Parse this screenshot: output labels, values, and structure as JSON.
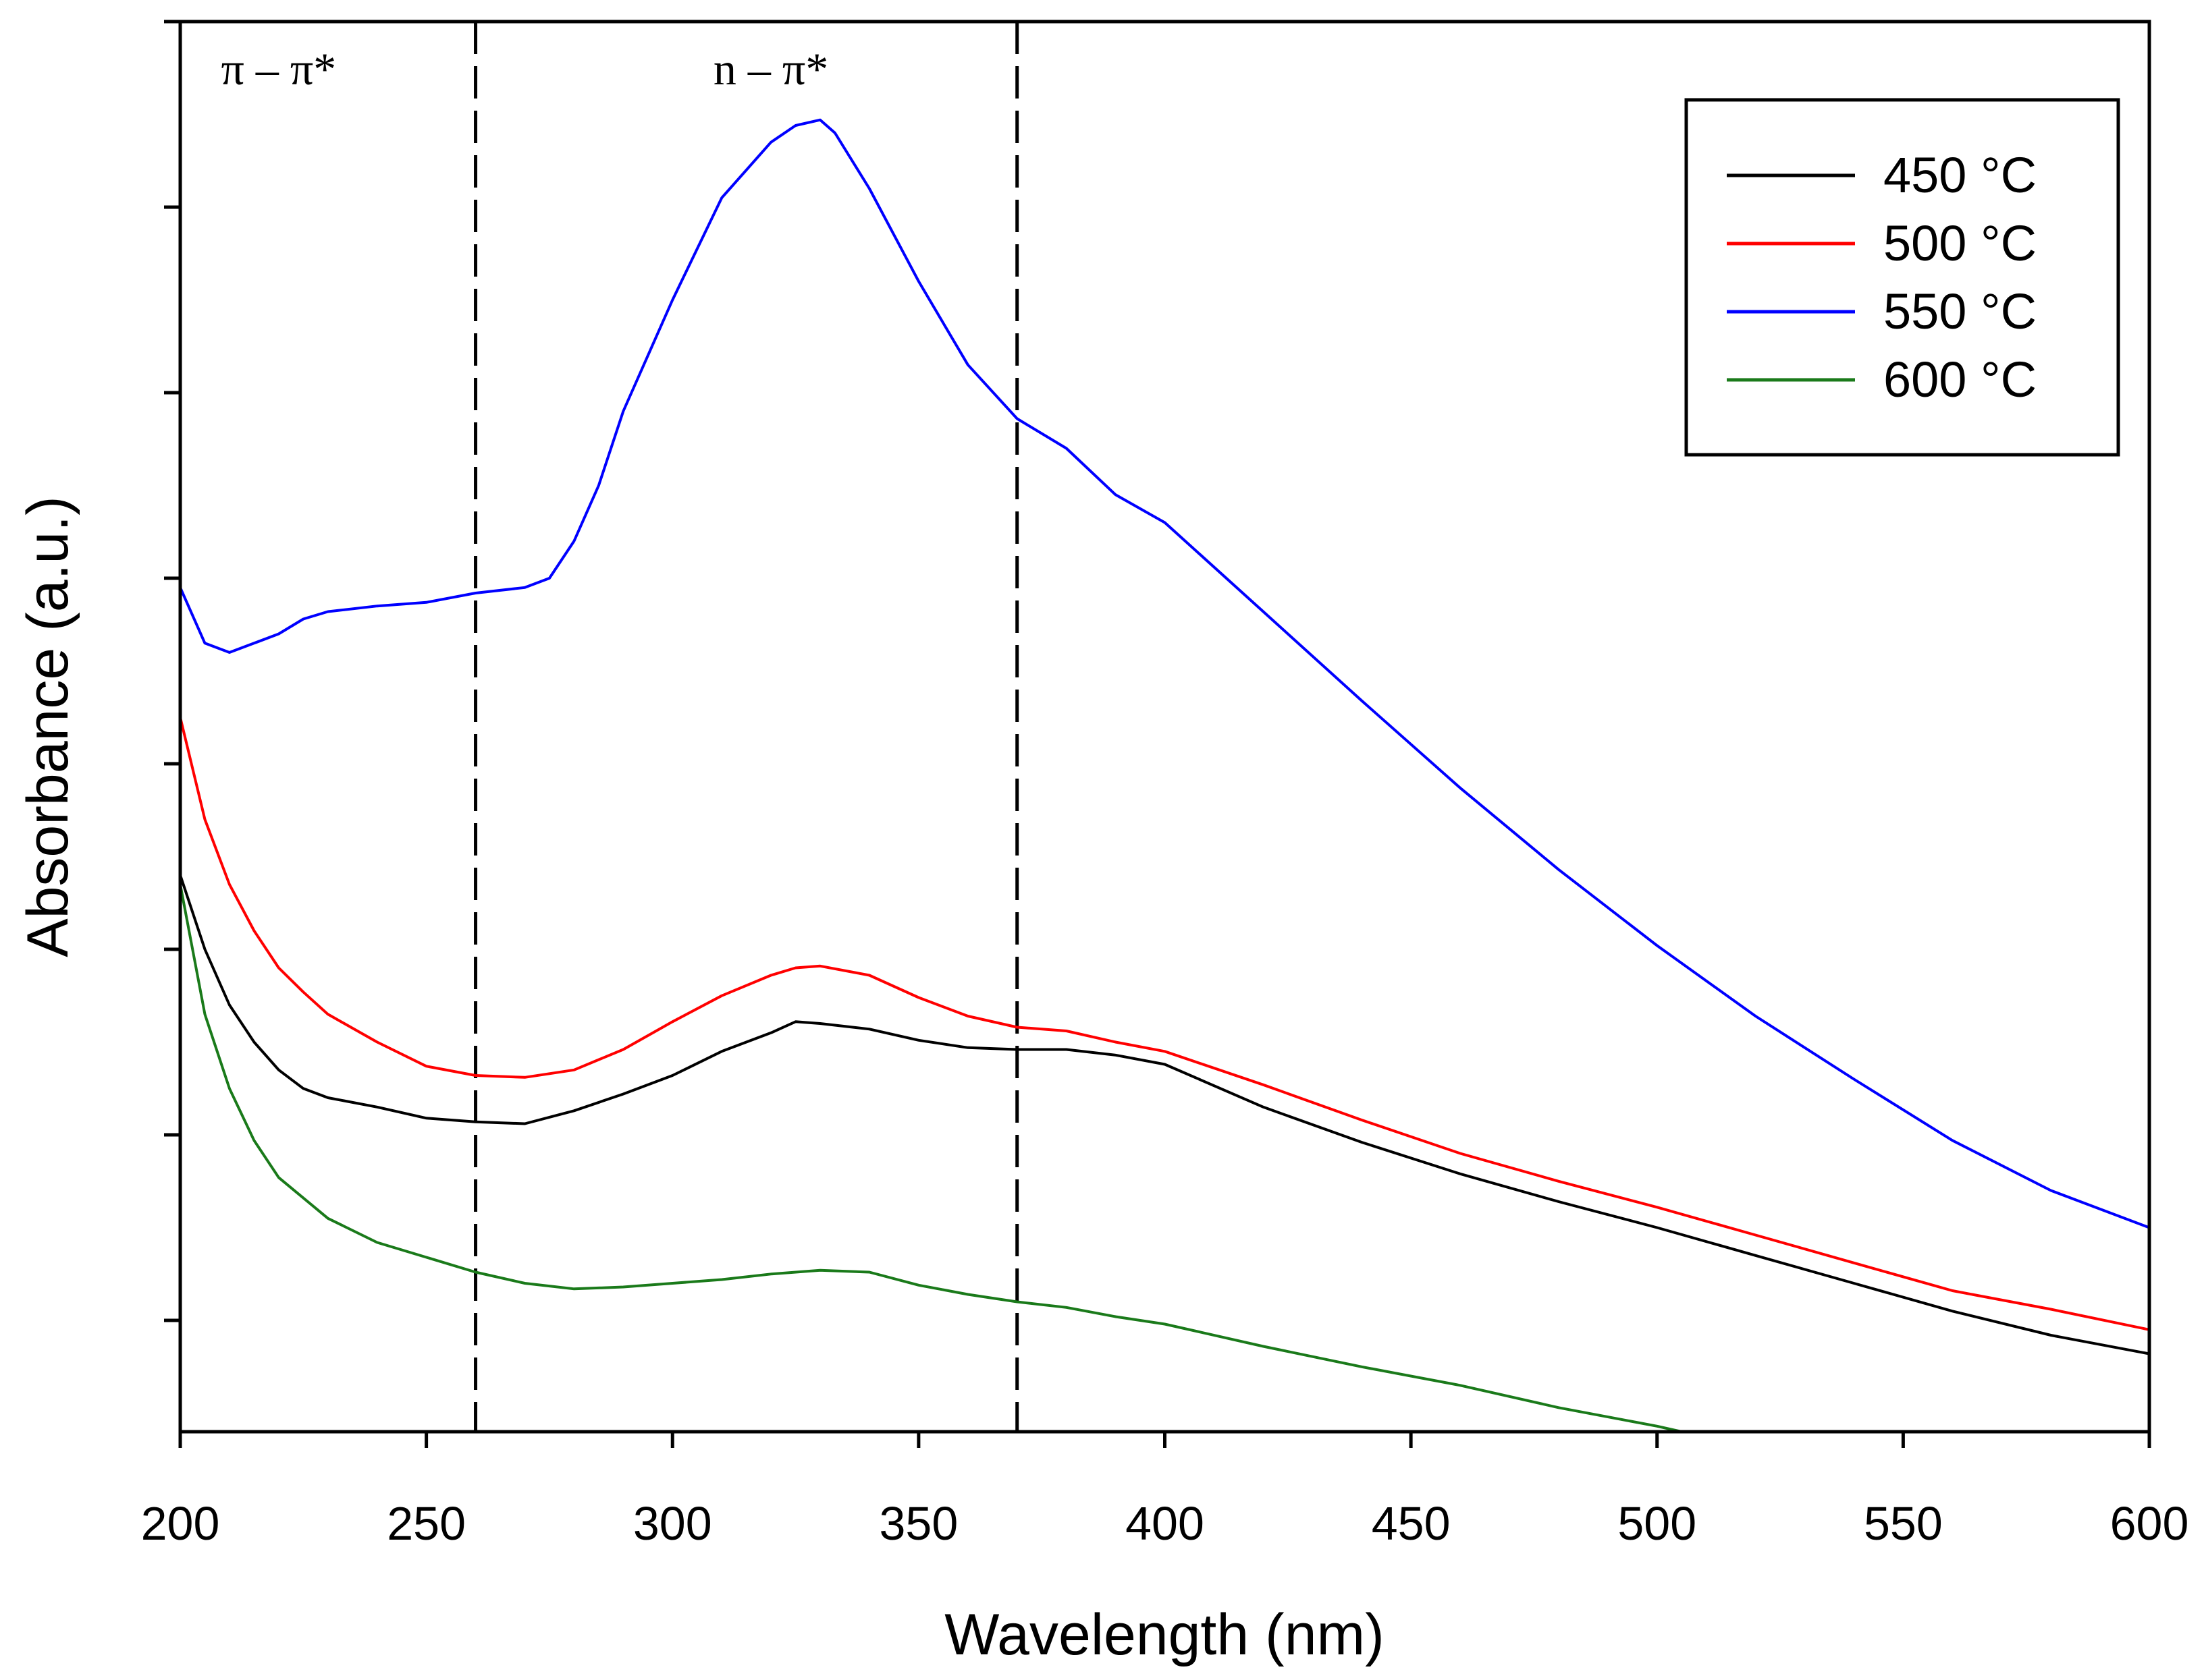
{
  "chart_data": {
    "type": "line",
    "title": "",
    "xlabel": "Wavelength (nm)",
    "ylabel": "Absorbance (a.u.)",
    "xlim": [
      200,
      600
    ],
    "ylim": [
      0,
      7.6
    ],
    "x_ticks": [
      200,
      250,
      300,
      350,
      400,
      450,
      500,
      550,
      600
    ],
    "y_ticks": [
      0.6,
      1.6,
      2.6,
      3.6,
      4.6,
      5.6,
      6.6,
      7.6
    ],
    "y_tick_labels_shown": false,
    "grid": false,
    "legend_position": "top-right",
    "annotations": [
      {
        "text": "π – π*",
        "x": 220
      },
      {
        "text": "n – π*",
        "x": 320
      }
    ],
    "vlines": [
      260,
      370
    ],
    "series": [
      {
        "name": "450 °C",
        "color": "#000000",
        "x": [
          200,
          205,
          210,
          215,
          220,
          225,
          230,
          240,
          250,
          260,
          270,
          280,
          290,
          300,
          310,
          320,
          325,
          330,
          340,
          350,
          360,
          370,
          380,
          390,
          400,
          420,
          440,
          460,
          480,
          500,
          520,
          540,
          560,
          580,
          600
        ],
        "y": [
          3.0,
          2.6,
          2.3,
          2.1,
          1.95,
          1.85,
          1.8,
          1.75,
          1.69,
          1.67,
          1.66,
          1.73,
          1.82,
          1.92,
          2.05,
          2.15,
          2.21,
          2.2,
          2.17,
          2.11,
          2.07,
          2.06,
          2.06,
          2.03,
          1.98,
          1.75,
          1.56,
          1.39,
          1.24,
          1.1,
          0.95,
          0.8,
          0.65,
          0.52,
          0.42
        ]
      },
      {
        "name": "500 °C",
        "color": "#ff0000",
        "x": [
          200,
          205,
          210,
          215,
          220,
          225,
          230,
          240,
          250,
          260,
          270,
          280,
          290,
          300,
          310,
          320,
          325,
          330,
          340,
          350,
          360,
          370,
          380,
          390,
          400,
          420,
          440,
          460,
          480,
          500,
          520,
          540,
          560,
          580,
          600
        ],
        "y": [
          3.85,
          3.3,
          2.95,
          2.7,
          2.5,
          2.37,
          2.25,
          2.1,
          1.97,
          1.92,
          1.91,
          1.95,
          2.06,
          2.21,
          2.35,
          2.46,
          2.5,
          2.51,
          2.46,
          2.34,
          2.24,
          2.18,
          2.16,
          2.1,
          2.05,
          1.87,
          1.68,
          1.5,
          1.35,
          1.21,
          1.06,
          0.91,
          0.76,
          0.66,
          0.55
        ]
      },
      {
        "name": "550 °C",
        "color": "#0000ff",
        "x": [
          200,
          205,
          210,
          215,
          220,
          225,
          230,
          240,
          250,
          260,
          270,
          275,
          280,
          285,
          290,
          300,
          310,
          320,
          325,
          330,
          333,
          340,
          350,
          360,
          370,
          380,
          390,
          400,
          420,
          440,
          460,
          480,
          500,
          520,
          540,
          560,
          580,
          600
        ],
        "y": [
          4.55,
          4.25,
          4.2,
          4.25,
          4.3,
          4.38,
          4.42,
          4.45,
          4.47,
          4.52,
          4.55,
          4.6,
          4.8,
          5.1,
          5.5,
          6.1,
          6.65,
          6.95,
          7.04,
          7.07,
          7.0,
          6.7,
          6.2,
          5.75,
          5.46,
          5.3,
          5.05,
          4.9,
          4.42,
          3.94,
          3.47,
          3.03,
          2.62,
          2.24,
          1.9,
          1.57,
          1.3,
          1.1
        ]
      },
      {
        "name": "600 °C",
        "color": "#1a7a1a",
        "x": [
          200,
          205,
          210,
          215,
          220,
          230,
          240,
          250,
          260,
          270,
          280,
          290,
          300,
          310,
          320,
          330,
          340,
          350,
          360,
          370,
          380,
          390,
          400,
          420,
          440,
          460,
          480,
          500,
          505
        ],
        "y": [
          2.95,
          2.25,
          1.85,
          1.57,
          1.37,
          1.15,
          1.02,
          0.94,
          0.86,
          0.8,
          0.77,
          0.78,
          0.8,
          0.82,
          0.85,
          0.87,
          0.86,
          0.79,
          0.74,
          0.7,
          0.67,
          0.62,
          0.58,
          0.46,
          0.35,
          0.25,
          0.13,
          0.03,
          0.0
        ]
      }
    ]
  }
}
